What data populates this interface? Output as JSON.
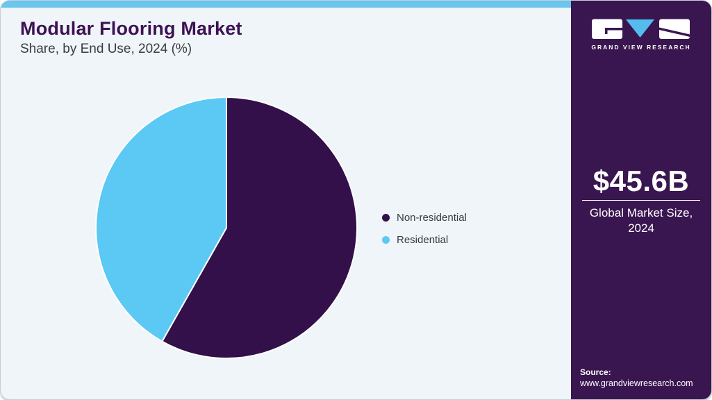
{
  "page": {
    "background_color": "#eff5f9",
    "accent_strip_color": "#68c6ef"
  },
  "header": {
    "title": "Modular Flooring Market",
    "subtitle": "Share, by End Use, 2024 (%)",
    "title_color": "#3e1152"
  },
  "chart_data": {
    "type": "pie",
    "title": "Modular Flooring Market Share, by End Use, 2024 (%)",
    "value_unit": "%",
    "start_angle_deg": 0,
    "direction": "clockwise",
    "legend_position": "right",
    "slice_divider_color": "#ffffff",
    "slices": [
      {
        "label": "Non-residential",
        "value": 58.2,
        "color": "#331049"
      },
      {
        "label": "Residential",
        "value": 41.8,
        "color": "#5bc9f4"
      }
    ]
  },
  "sidebar": {
    "background_color": "#3a1650",
    "logo": {
      "brand": "GRAND VIEW RESEARCH",
      "triangle_color": "#54bdee"
    },
    "market_size": {
      "value": "$45.6B",
      "label_line1": "Global Market Size,",
      "label_line2": "2024"
    },
    "source": {
      "label": "Source:",
      "url": "www.grandviewresearch.com"
    }
  }
}
